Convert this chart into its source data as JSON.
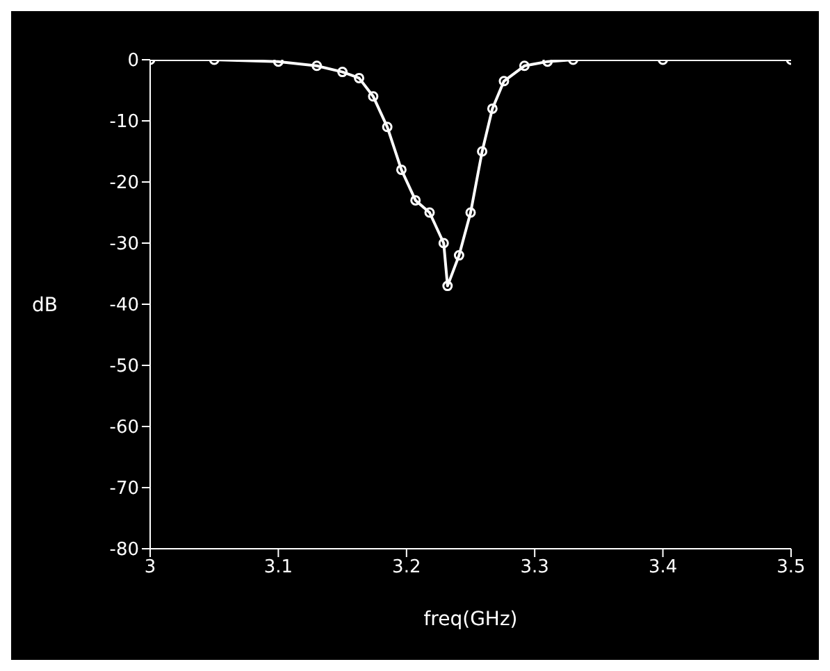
{
  "chart_data": {
    "type": "line",
    "xlabel": "freq(GHz)",
    "ylabel": "dB",
    "xlim": [
      3,
      3.5
    ],
    "xticks": [
      3,
      3.1,
      3.2,
      3.3,
      3.4,
      3.5
    ],
    "ylim": [
      -80,
      0
    ],
    "yticks": [
      0,
      -10,
      -20,
      -30,
      -40,
      -50,
      -60,
      -70,
      -80
    ],
    "grid": false,
    "legend": false,
    "marker": "circle",
    "x": [
      3,
      3.05,
      3.1,
      3.13,
      3.15,
      3.163,
      3.174,
      3.185,
      3.196,
      3.207,
      3.218,
      3.229,
      3.232,
      3.241,
      3.25,
      3.259,
      3.267,
      3.276,
      3.292,
      3.31,
      3.33,
      3.4,
      3.5
    ],
    "series": [
      {
        "color": "#ffffff",
        "values": [
          0,
          0,
          -0.3,
          -1,
          -2,
          -3,
          -6,
          -11,
          -18,
          -23,
          -25,
          -30,
          -37,
          -32,
          -25,
          -15,
          -8,
          -3.5,
          -1,
          -0.3,
          0,
          0,
          0
        ]
      }
    ]
  }
}
